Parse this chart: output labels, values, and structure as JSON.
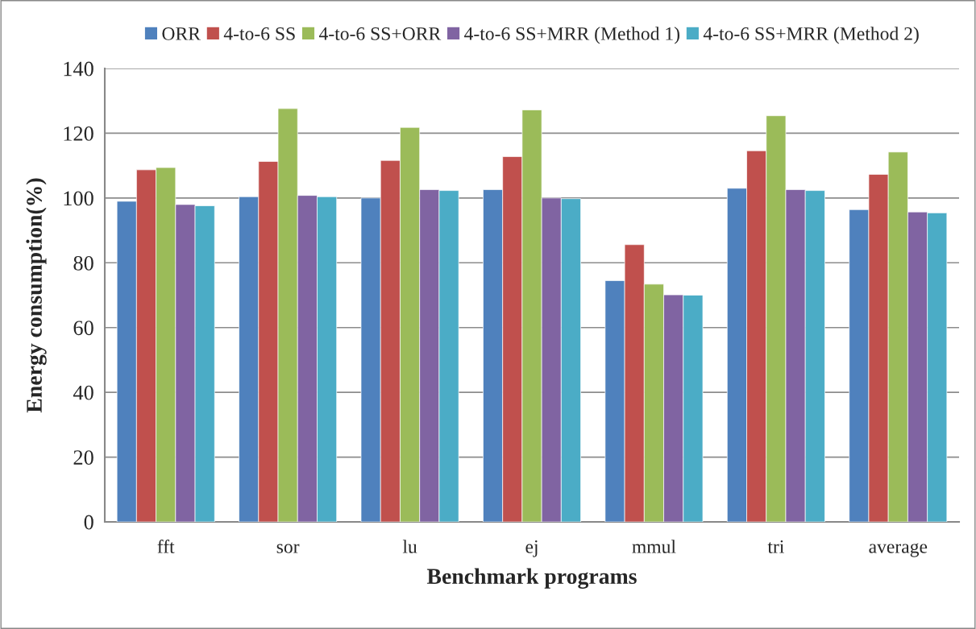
{
  "chart_data": {
    "type": "bar",
    "xlabel": "Benchmark programs",
    "ylabel": "Energy consumption(%)",
    "categories": [
      "fft",
      "sor",
      "lu",
      "ej",
      "mmul",
      "tri",
      "average"
    ],
    "series": [
      {
        "name": "ORR",
        "color": "#4f81bd",
        "values": [
          99,
          100.4,
          100,
          102.6,
          74.5,
          103,
          96.4
        ]
      },
      {
        "name": "4-to-6 SS",
        "color": "#c0504d",
        "values": [
          108.7,
          111.3,
          111.6,
          112.8,
          85.6,
          114.6,
          107.3
        ]
      },
      {
        "name": "4-to-6 SS+ORR",
        "color": "#9bbb59",
        "values": [
          109.4,
          127.6,
          121.8,
          127.2,
          73.4,
          125.4,
          114.2
        ]
      },
      {
        "name": "4-to-6 SS+MRR (Method 1)",
        "color": "#8064a2",
        "values": [
          98,
          100.8,
          102.6,
          100,
          70.1,
          102.6,
          95.7
        ]
      },
      {
        "name": "4-to-6 SS+MRR (Method 2)",
        "color": "#4bacc6",
        "values": [
          97.6,
          100.4,
          102.3,
          99.8,
          70,
          102.3,
          95.4
        ]
      }
    ],
    "ylim": [
      0,
      140
    ],
    "yticks": [
      0,
      20,
      40,
      60,
      80,
      100,
      120,
      140
    ],
    "grid": "y",
    "legend": "top"
  }
}
